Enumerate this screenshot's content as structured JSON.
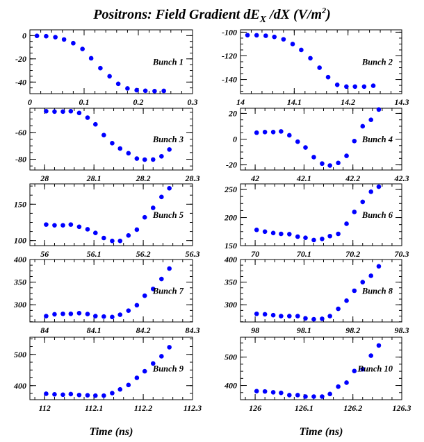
{
  "figure": {
    "title_main": "Positrons: Field Gradient dE",
    "title_sub": "X",
    "title_mid": " /dX (V/m",
    "title_sup": "2",
    "title_end": ")",
    "xlabel_left": "Time (ns)",
    "xlabel_right": "Time (ns)"
  },
  "chart_data": [
    {
      "type": "scatter",
      "label": "Bunch 1",
      "marker_color": "#0000ff",
      "xlim": [
        0,
        0.3
      ],
      "ylim": [
        -50,
        5
      ],
      "xticks": [
        0,
        0.1,
        0.2,
        0.3
      ],
      "xtick_labels": [
        "0",
        "0.1",
        "0.2",
        "0.3"
      ],
      "yticks": [
        0,
        -20,
        -40
      ],
      "ytick_labels": [
        "0",
        "-20",
        "-40"
      ],
      "x": [
        0.013,
        0.03,
        0.047,
        0.063,
        0.08,
        0.097,
        0.113,
        0.13,
        0.147,
        0.163,
        0.18,
        0.197,
        0.213,
        0.23,
        0.247
      ],
      "y": [
        -0.2,
        -0.5,
        -1.3,
        -3.3,
        -6.5,
        -11.5,
        -19.5,
        -28,
        -35,
        -41.5,
        -45.5,
        -47,
        -47.5,
        -47.8,
        -47.6
      ]
    },
    {
      "type": "scatter",
      "label": "Bunch 2",
      "marker_color": "#0000ff",
      "xlim": [
        14,
        14.3
      ],
      "ylim": [
        -152,
        -98
      ],
      "xticks": [
        14,
        14.1,
        14.2,
        14.3
      ],
      "xtick_labels": [
        "14",
        "14.1",
        "14.2",
        "14.3"
      ],
      "yticks": [
        -100,
        -120,
        -140
      ],
      "ytick_labels": [
        "-100",
        "-120",
        "-140"
      ],
      "x": [
        14.013,
        14.03,
        14.047,
        14.063,
        14.08,
        14.097,
        14.113,
        14.13,
        14.147,
        14.163,
        14.18,
        14.197,
        14.213,
        14.23,
        14.247
      ],
      "y": [
        -102.5,
        -102.6,
        -103,
        -104,
        -106,
        -110,
        -115,
        -122,
        -130,
        -138,
        -144.5,
        -146,
        -146,
        -146,
        -145.3
      ]
    },
    {
      "type": "scatter",
      "label": "Bunch 3",
      "marker_color": "#0000ff",
      "xlim": [
        27.97,
        28.3
      ],
      "ylim": [
        -88,
        -42
      ],
      "xticks": [
        28,
        28.1,
        28.2,
        28.3
      ],
      "xtick_labels": [
        "28",
        "28.1",
        "28.2",
        "28.3"
      ],
      "yticks": [
        -60,
        -80
      ],
      "ytick_labels": [
        "-60",
        "-80"
      ],
      "x": [
        28.003,
        28.02,
        28.037,
        28.053,
        28.07,
        28.087,
        28.103,
        28.12,
        28.137,
        28.153,
        28.17,
        28.187,
        28.203,
        28.22,
        28.237,
        28.253
      ],
      "y": [
        -44.2,
        -44.5,
        -44.5,
        -44.2,
        -45.5,
        -49,
        -54,
        -62,
        -68,
        -72,
        -75.5,
        -79.5,
        -80.3,
        -80.2,
        -77.8,
        -72.7
      ]
    },
    {
      "type": "scatter",
      "label": "Bunch 4",
      "marker_color": "#0000ff",
      "xlim": [
        41.97,
        42.3
      ],
      "ylim": [
        -24,
        24
      ],
      "xticks": [
        42,
        42.1,
        42.2,
        42.3
      ],
      "xtick_labels": [
        "42",
        "42.1",
        "42.2",
        "42.3"
      ],
      "yticks": [
        20,
        0,
        -20
      ],
      "ytick_labels": [
        "20",
        "0",
        "-20"
      ],
      "x": [
        42.003,
        42.02,
        42.037,
        42.053,
        42.07,
        42.087,
        42.103,
        42.12,
        42.137,
        42.153,
        42.17,
        42.187,
        42.203,
        42.22,
        42.237,
        42.253
      ],
      "y": [
        5,
        5.5,
        5.5,
        6,
        3,
        -2,
        -6.5,
        -14,
        -19,
        -20.5,
        -18.5,
        -13,
        -1.5,
        10,
        15,
        23
      ]
    },
    {
      "type": "scatter",
      "label": "Bunch 5",
      "marker_color": "#0000ff",
      "xlim": [
        55.97,
        56.3
      ],
      "ylim": [
        93,
        178
      ],
      "xticks": [
        56,
        56.1,
        56.2,
        56.3
      ],
      "xtick_labels": [
        "56",
        "56.1",
        "56.2",
        "56.3"
      ],
      "yticks": [
        150,
        100
      ],
      "ytick_labels": [
        "150",
        "100"
      ],
      "x": [
        56.003,
        56.02,
        56.037,
        56.053,
        56.07,
        56.087,
        56.103,
        56.12,
        56.137,
        56.153,
        56.17,
        56.187,
        56.203,
        56.22,
        56.237,
        56.253
      ],
      "y": [
        122,
        121,
        121,
        122,
        119,
        115.5,
        110.5,
        103.5,
        99.5,
        99.5,
        107,
        115,
        132,
        145,
        160,
        172
      ]
    },
    {
      "type": "scatter",
      "label": "Bunch 6",
      "marker_color": "#0000ff",
      "xlim": [
        69.97,
        70.3
      ],
      "ylim": [
        150,
        260
      ],
      "xticks": [
        70,
        70.1,
        70.2,
        70.3
      ],
      "xtick_labels": [
        "70",
        "70.1",
        "70.2",
        "70.3"
      ],
      "yticks": [
        250,
        200,
        150
      ],
      "ytick_labels": [
        "250",
        "200",
        "150"
      ],
      "x": [
        70.003,
        70.02,
        70.037,
        70.053,
        70.07,
        70.087,
        70.103,
        70.12,
        70.137,
        70.153,
        70.17,
        70.187,
        70.203,
        70.22,
        70.237,
        70.253
      ],
      "y": [
        178,
        175,
        172.5,
        171,
        170.5,
        166,
        164,
        160,
        162,
        167,
        171,
        189,
        210,
        228,
        246,
        255
      ]
    },
    {
      "type": "scatter",
      "label": "Bunch 7",
      "marker_color": "#0000ff",
      "xlim": [
        83.97,
        84.3
      ],
      "ylim": [
        262,
        400
      ],
      "xticks": [
        84,
        84.1,
        84.2,
        84.3
      ],
      "xtick_labels": [
        "84",
        "84.1",
        "84.2",
        "84.3"
      ],
      "yticks": [
        400,
        350,
        300
      ],
      "ytick_labels": [
        "400",
        "350",
        "300"
      ],
      "x": [
        84.003,
        84.02,
        84.037,
        84.053,
        84.07,
        84.087,
        84.103,
        84.12,
        84.137,
        84.153,
        84.17,
        84.187,
        84.203,
        84.22,
        84.237,
        84.253
      ],
      "y": [
        275,
        279,
        280,
        280,
        281.5,
        279.5,
        275,
        274,
        273,
        278,
        287,
        299,
        320,
        335,
        357,
        380
      ]
    },
    {
      "type": "scatter",
      "label": "Bunch 8",
      "marker_color": "#0000ff",
      "xlim": [
        97.97,
        98.3
      ],
      "ylim": [
        262,
        400
      ],
      "xticks": [
        98,
        98.1,
        98.2,
        98.3
      ],
      "xtick_labels": [
        "98",
        "98.1",
        "98.2",
        "98.3"
      ],
      "yticks": [
        400,
        350,
        300
      ],
      "ytick_labels": [
        "400",
        "350",
        "300"
      ],
      "x": [
        98.003,
        98.02,
        98.037,
        98.053,
        98.07,
        98.087,
        98.103,
        98.12,
        98.137,
        98.153,
        98.17,
        98.187,
        98.203,
        98.22,
        98.237,
        98.253
      ],
      "y": [
        280,
        279,
        277,
        275,
        275,
        275,
        270,
        268,
        269,
        275,
        291,
        309,
        331,
        350,
        364,
        385
      ]
    },
    {
      "type": "scatter",
      "label": "Bunch 9",
      "marker_color": "#0000ff",
      "xlim": [
        111.97,
        112.3
      ],
      "ylim": [
        355,
        555
      ],
      "xticks": [
        112,
        112.1,
        112.2,
        112.3
      ],
      "xtick_labels": [
        "112",
        "112.1",
        "112.2",
        "112.3"
      ],
      "yticks": [
        500,
        400
      ],
      "ytick_labels": [
        "500",
        "400"
      ],
      "x": [
        112.003,
        112.02,
        112.037,
        112.053,
        112.07,
        112.087,
        112.103,
        112.12,
        112.137,
        112.153,
        112.17,
        112.187,
        112.203,
        112.22,
        112.237,
        112.253
      ],
      "y": [
        374,
        372,
        371,
        373,
        370,
        369,
        368,
        368,
        376,
        388,
        402,
        425,
        446,
        471,
        494,
        523
      ]
    },
    {
      "type": "scatter",
      "label": "Bunch 10",
      "marker_color": "#0000ff",
      "xlim": [
        125.97,
        126.3
      ],
      "ylim": [
        350,
        570
      ],
      "xticks": [
        126,
        126.1,
        126.2,
        126.3
      ],
      "xtick_labels": [
        "126",
        "126.1",
        "126.2",
        "126.3"
      ],
      "yticks": [
        500,
        400
      ],
      "ytick_labels": [
        "500",
        "400"
      ],
      "x": [
        126.003,
        126.02,
        126.037,
        126.053,
        126.07,
        126.087,
        126.103,
        126.12,
        126.137,
        126.153,
        126.17,
        126.187,
        126.203,
        126.22,
        126.237,
        126.253
      ],
      "y": [
        380,
        379,
        376,
        374,
        366,
        366,
        361,
        361,
        361,
        370,
        396,
        410,
        451,
        457,
        505,
        541
      ]
    }
  ]
}
